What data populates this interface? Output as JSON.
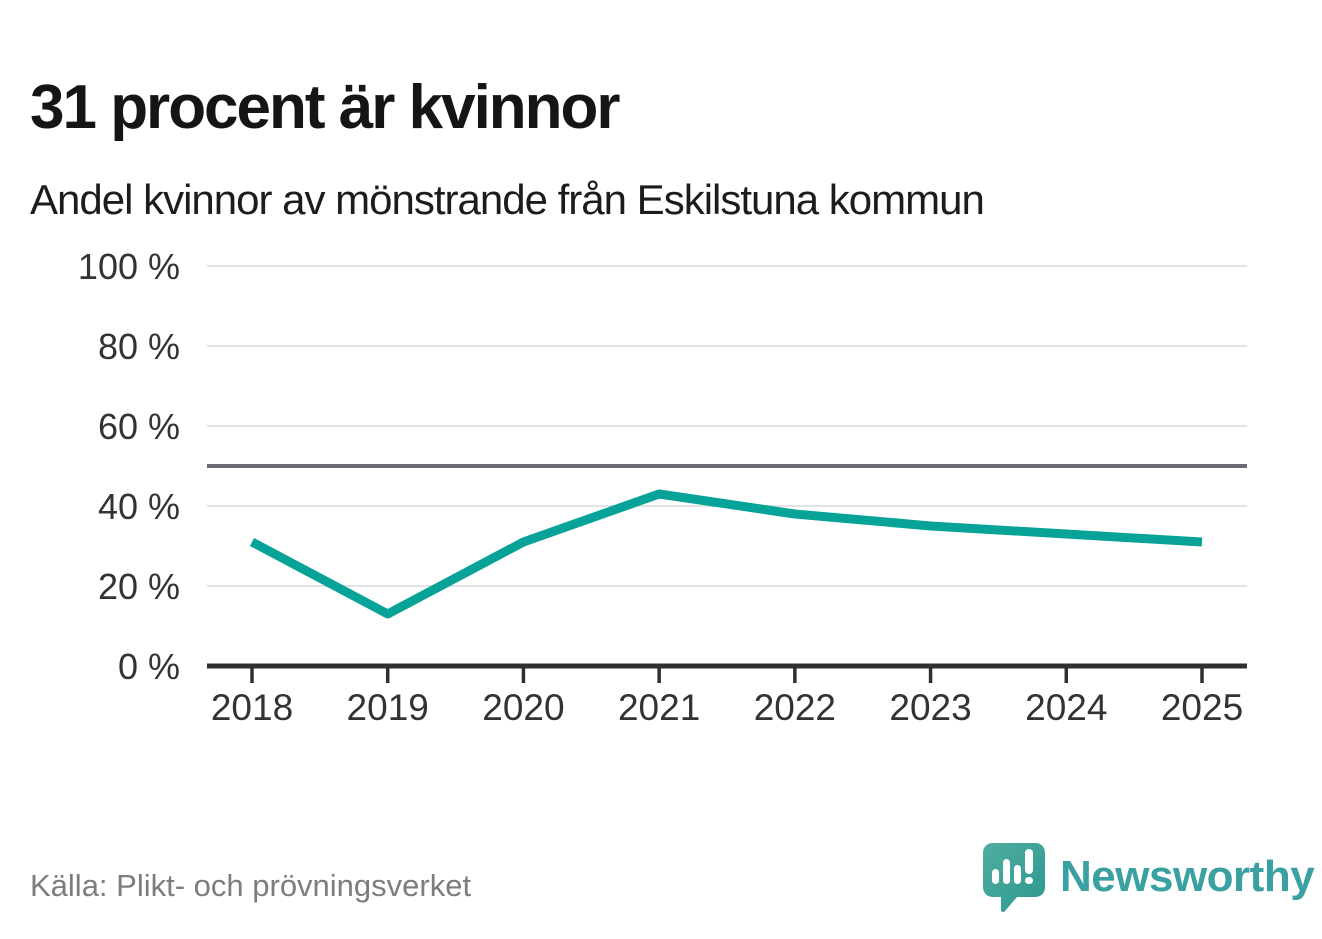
{
  "header": {
    "title": "31 procent är kvinnor",
    "subtitle": "Andel kvinnor av mönstrande från Eskilstuna kommun"
  },
  "chart_data": {
    "type": "line",
    "title": "Andel kvinnor av mönstrande från Eskilstuna kommun",
    "x": [
      "2018",
      "2019",
      "2020",
      "2021",
      "2022",
      "2023",
      "2024",
      "2025"
    ],
    "series": [
      {
        "name": "Andel kvinnor av mönstrande",
        "values": [
          31,
          13,
          31,
          43,
          38,
          35,
          33,
          31
        ],
        "color": "#07a398"
      }
    ],
    "unit": "%",
    "ylim": [
      0,
      100
    ],
    "yticks": [
      0,
      20,
      40,
      60,
      80,
      100
    ],
    "ytick_labels": [
      "0 %",
      "20 %",
      "40 %",
      "60 %",
      "80 %",
      "100 %"
    ],
    "reference_line": 50,
    "grid": "horizontal",
    "legend": "none"
  },
  "footer": {
    "source": "Källa: Plikt- och prövningsverket",
    "brand": "Newsworthy"
  },
  "colors": {
    "accent_line": "#07a398",
    "reference_line": "#6a6a72",
    "grid": "#e3e3e3",
    "axis": "#2f2f2f",
    "tick_text": "#333333",
    "title_text": "#151515",
    "muted_text": "#7d7d7d",
    "brand_teal": "#3aa0a2",
    "brand_icon_light": "#4fae9f",
    "brand_icon_dark": "#2d9790"
  }
}
